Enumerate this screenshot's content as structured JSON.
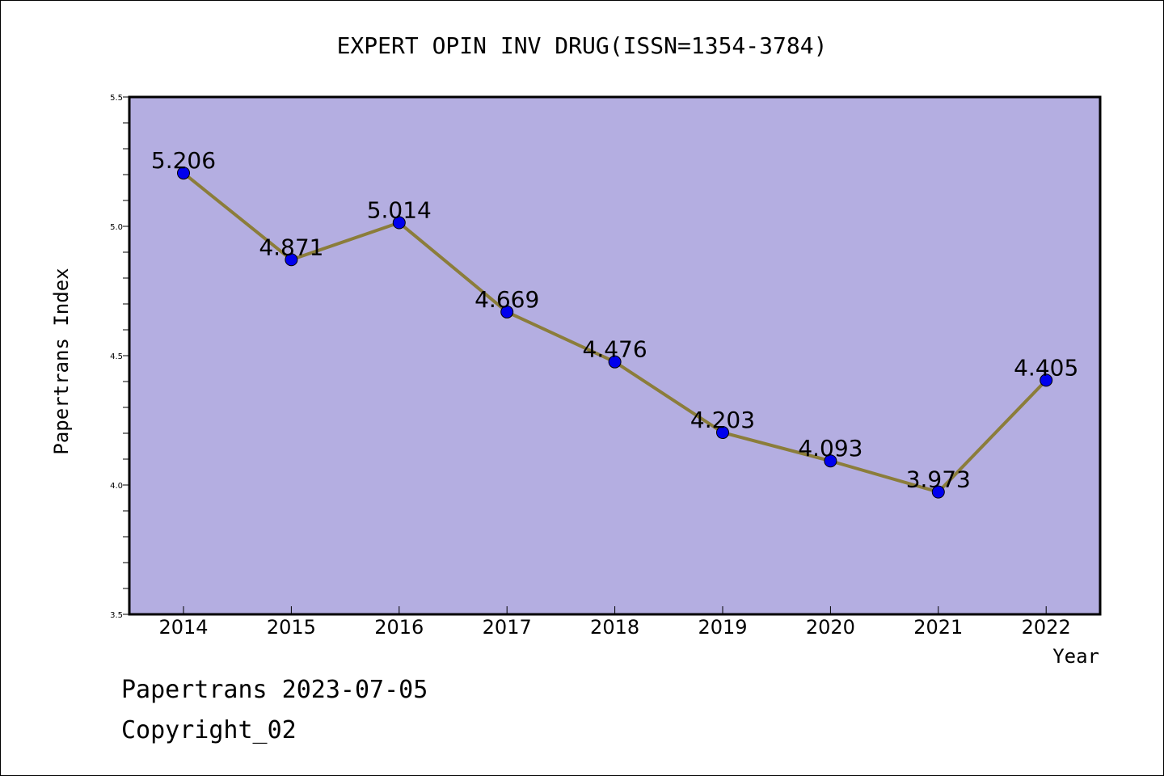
{
  "chart_data": {
    "type": "line",
    "title": "EXPERT OPIN INV DRUG(ISSN=1354-3784)",
    "xlabel": "Year",
    "ylabel": "Papertrans Index",
    "categories": [
      "2014",
      "2015",
      "2016",
      "2017",
      "2018",
      "2019",
      "2020",
      "2021",
      "2022"
    ],
    "series": [
      {
        "values": [
          5.206,
          4.871,
          5.014,
          4.669,
          4.476,
          4.203,
          4.093,
          3.973,
          4.405
        ],
        "labels": [
          "5.206",
          "4.871",
          "5.014",
          "4.669",
          "4.476",
          "4.203",
          "4.093",
          "3.973",
          "4.405"
        ]
      }
    ],
    "ylim": [
      3.5,
      5.5
    ],
    "yticks": [
      "3.5",
      "4.0",
      "4.5",
      "5.0",
      "5.5"
    ],
    "grid": false,
    "colors": {
      "plot_background": "#b4aee1",
      "line": "#8b7d3a",
      "marker": "#0000ee"
    }
  },
  "footer": {
    "line1": "Papertrans 2023-07-05",
    "line2": "Copyright_02"
  }
}
